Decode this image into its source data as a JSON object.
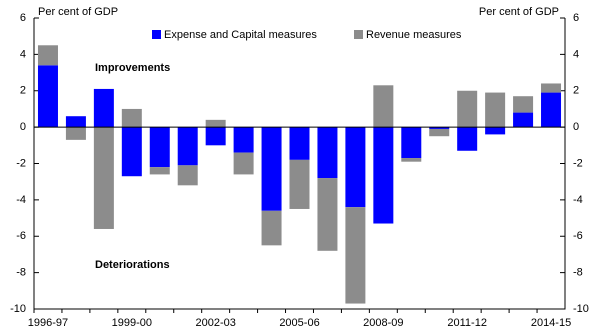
{
  "chart_data": {
    "type": "stacked-bar",
    "y_label": "Per cent of GDP",
    "y2_label": "Per cent of GDP",
    "annotations": [
      "Improvements",
      "Deteriorations"
    ],
    "categories": [
      "1996-97",
      null,
      null,
      "1999-00",
      null,
      null,
      "2002-03",
      null,
      null,
      "2005-06",
      null,
      null,
      "2008-09",
      null,
      null,
      "2011-12",
      null,
      null,
      "2014-15"
    ],
    "series": [
      {
        "name": "Expense and Capital measures",
        "color": "#0000ff",
        "values": [
          3.4,
          0.6,
          2.1,
          -2.7,
          -2.2,
          -2.1,
          -1.0,
          -1.4,
          -4.6,
          -1.8,
          -2.8,
          -4.4,
          -5.3,
          -1.7,
          -0.1,
          -1.3,
          -0.4,
          0.8,
          1.9
        ]
      },
      {
        "name": "Revenue measures",
        "color": "#8c8c8c",
        "values": [
          1.1,
          -0.7,
          -5.6,
          1.0,
          -0.4,
          -1.1,
          0.4,
          -1.2,
          -1.9,
          -2.7,
          -4.0,
          -5.3,
          2.3,
          -0.2,
          -0.4,
          2.0,
          1.9,
          0.9,
          0.5
        ]
      }
    ],
    "ylim": [
      -10,
      6
    ],
    "yticks": [
      -10,
      -8,
      -6,
      -4,
      -2,
      0,
      2,
      4,
      6
    ],
    "y2lim": [
      -10,
      6
    ],
    "y2ticks": [
      -10,
      -8,
      -6,
      -4,
      -2,
      0,
      2,
      4,
      6
    ]
  }
}
